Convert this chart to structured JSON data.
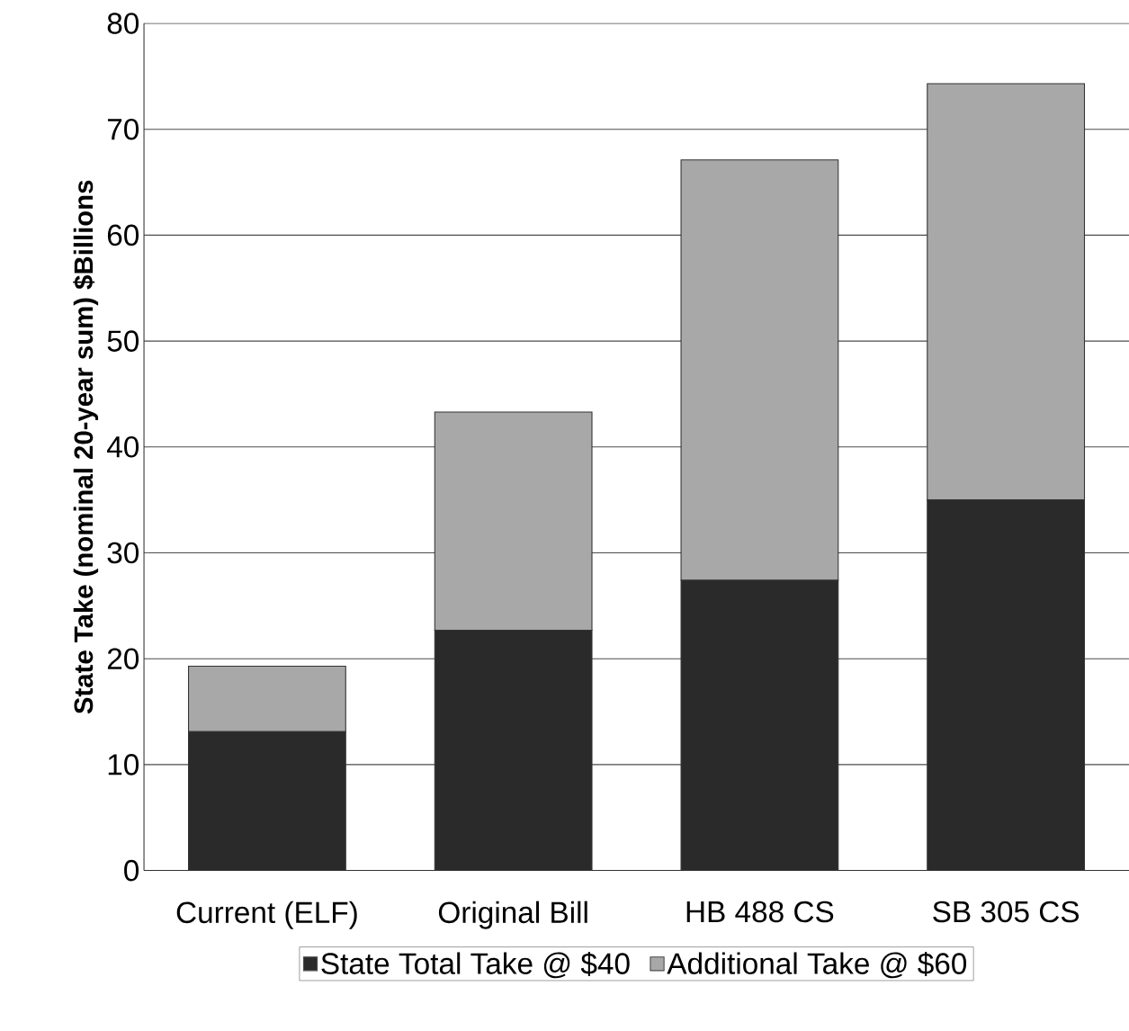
{
  "chart_data": {
    "type": "bar",
    "stacked": true,
    "ylabel": "State Take (nominal 20-year sum) $Billions",
    "categories": [
      "Current (ELF)",
      "Original Bill",
      "HB 488 CS",
      "SB 305 CS"
    ],
    "series": [
      {
        "name": "State Total Take @ $40",
        "color": "#2a2a2a",
        "values": [
          13.1,
          22.7,
          27.4,
          35.0
        ]
      },
      {
        "name": "Additional Take @ $60",
        "color": "#a8a8a8",
        "values": [
          6.2,
          20.6,
          39.7,
          39.3
        ]
      }
    ],
    "ylim": [
      0,
      80
    ],
    "yticks": [
      0,
      10,
      20,
      30,
      40,
      50,
      60,
      70,
      80
    ],
    "grid": "y",
    "legend": "bottom"
  }
}
